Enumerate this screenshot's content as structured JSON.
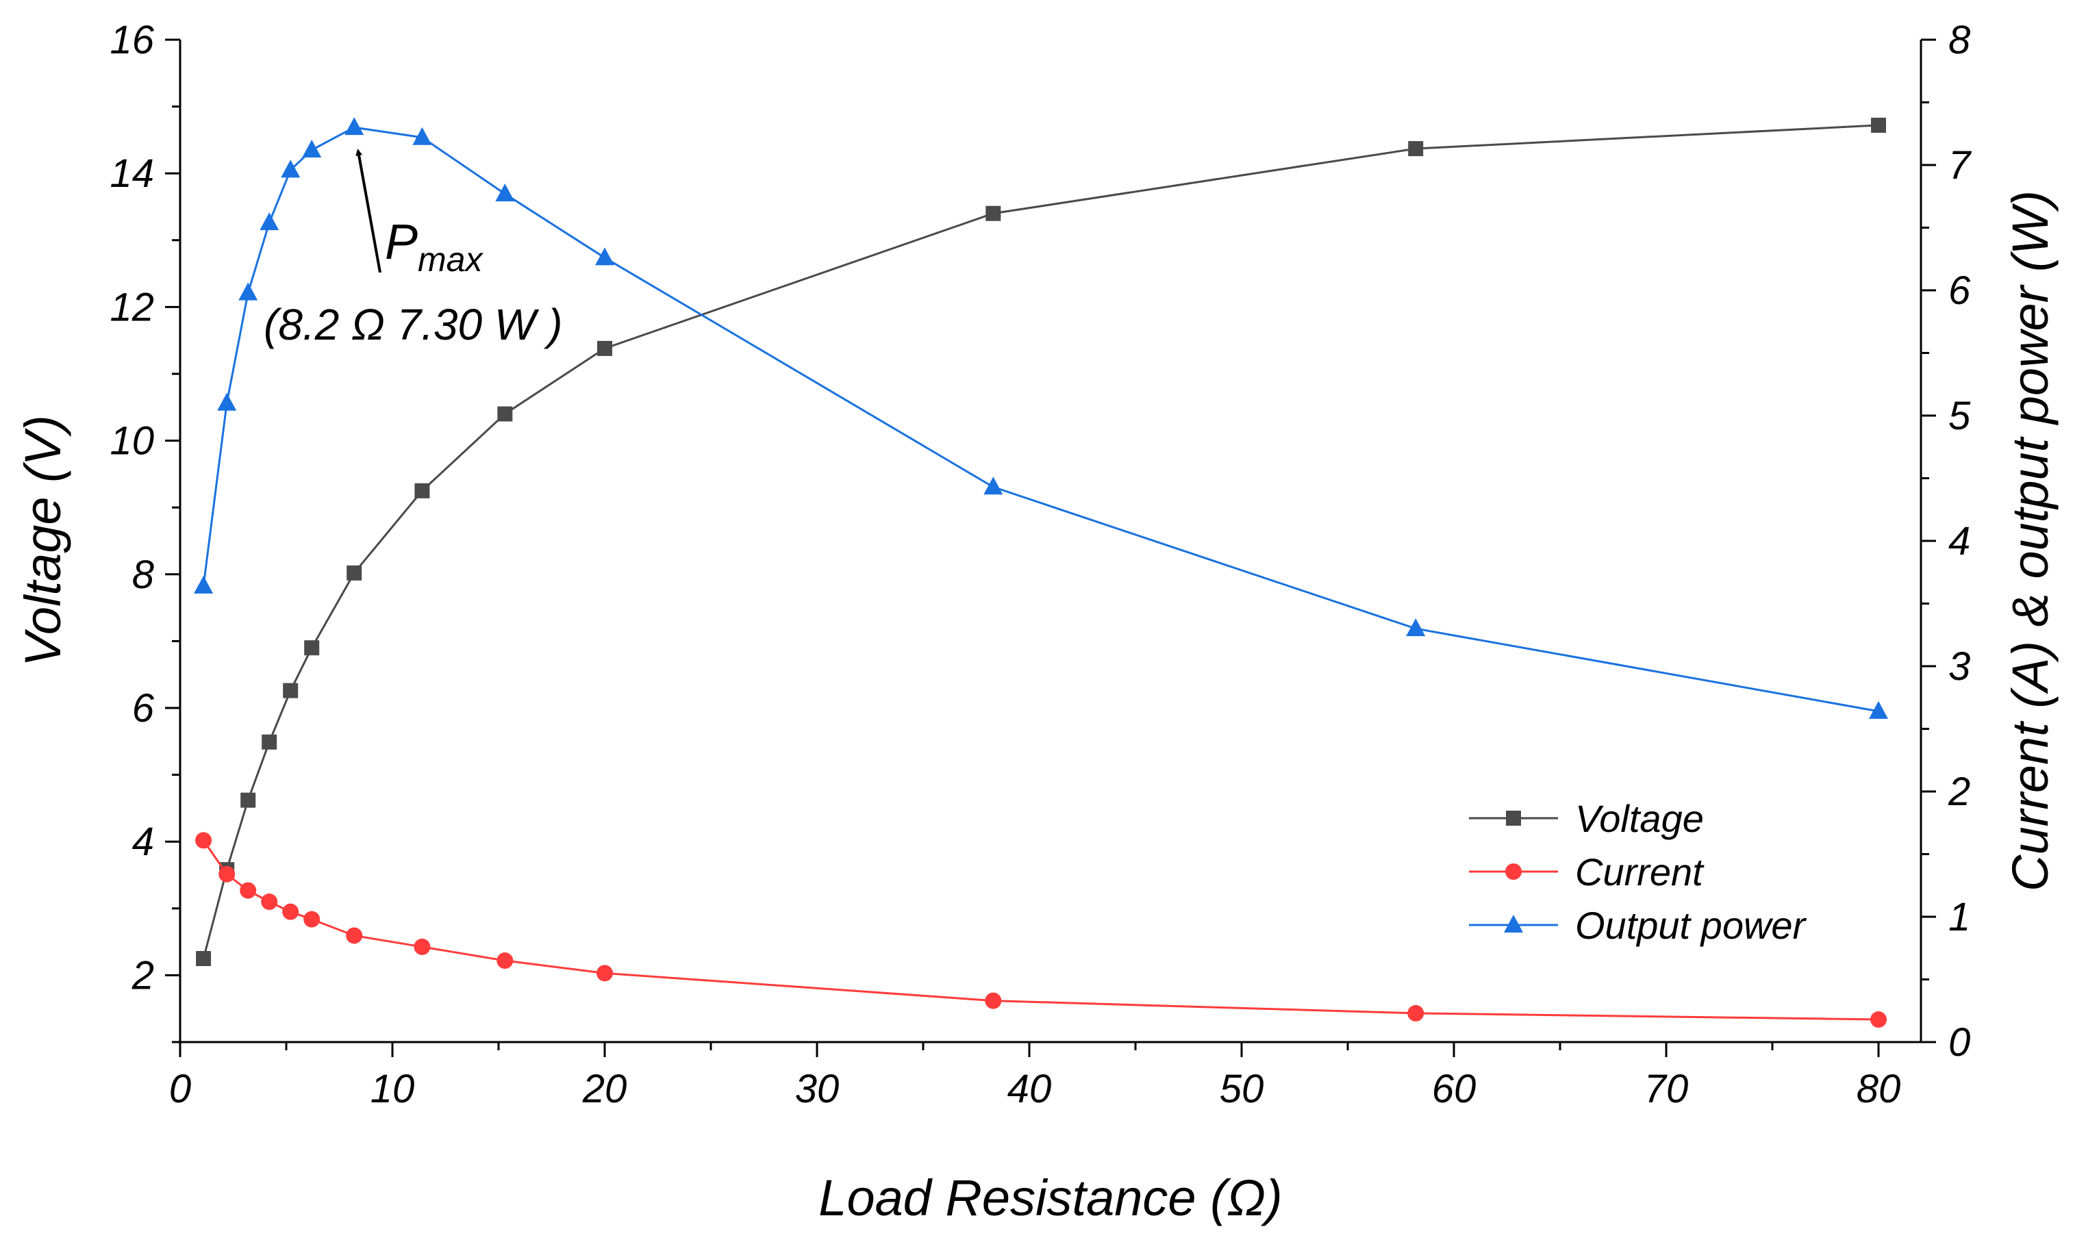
{
  "colors": {
    "voltage": "#4a4a4a",
    "current": "#ff3b3b",
    "power": "#1a72e0",
    "axis": "#000000"
  },
  "chart_data": {
    "type": "line",
    "xlabel": "Load Resistance (Ω)",
    "ylabel": "Voltage (V)",
    "y2label": "Current (A) & output power (W)",
    "xlim": [
      0,
      82
    ],
    "ylim": [
      1,
      16
    ],
    "y2lim": [
      0,
      8
    ],
    "xticks": [
      0,
      10,
      20,
      30,
      40,
      50,
      60,
      70,
      80
    ],
    "yticks": [
      2,
      4,
      6,
      8,
      10,
      12,
      14,
      16
    ],
    "y2ticks": [
      0,
      1,
      2,
      3,
      4,
      5,
      6,
      7,
      8
    ],
    "grid": false,
    "legend_position": "bottom-right",
    "x": [
      1.1,
      2.2,
      3.2,
      4.2,
      5.2,
      6.2,
      8.2,
      11.4,
      15.3,
      20.0,
      38.3,
      58.2,
      80.0
    ],
    "series": [
      {
        "name": "Voltage",
        "axis": "left",
        "marker": "square",
        "color": "#4a4a4a",
        "values": [
          2.25,
          3.58,
          4.62,
          5.49,
          6.26,
          6.9,
          8.02,
          9.25,
          10.4,
          11.38,
          13.4,
          14.37,
          14.72
        ]
      },
      {
        "name": "Current",
        "axis": "right",
        "marker": "circle",
        "color": "#ff3b3b",
        "values": [
          1.61,
          1.34,
          1.21,
          1.12,
          1.04,
          0.98,
          0.85,
          0.76,
          0.65,
          0.55,
          0.33,
          0.23,
          0.18
        ]
      },
      {
        "name": "Output power",
        "axis": "right",
        "marker": "triangle",
        "color": "#1a72e0",
        "values": [
          3.64,
          5.1,
          5.98,
          6.54,
          6.96,
          7.12,
          7.3,
          7.22,
          6.77,
          6.26,
          4.43,
          3.3,
          2.64
        ]
      }
    ],
    "annotation": {
      "label_main": "P",
      "label_sub": "max",
      "detail": "(8.2 Ω 7.30 W )",
      "target_x": 8.2,
      "target_y2": 7.3
    }
  }
}
